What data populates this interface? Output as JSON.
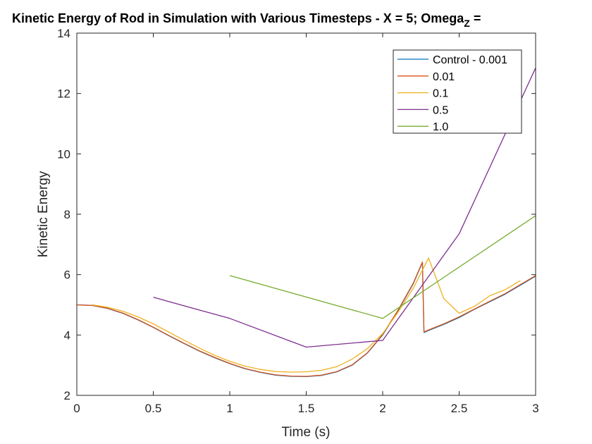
{
  "chart_data": {
    "type": "line",
    "title_main": "Kinetic Energy of Rod in Simulation with Various Timesteps - X = 5; Omega",
    "title_sub": "Z",
    "title_tail": " =",
    "xlabel": "Time (s)",
    "ylabel": "Kinetic Energy",
    "xlim": [
      0,
      3
    ],
    "ylim": [
      2,
      14
    ],
    "xticks": [
      0,
      0.5,
      1,
      1.5,
      2,
      2.5,
      3
    ],
    "xtick_labels": [
      "0",
      "0.5",
      "1",
      "1.5",
      "2",
      "2.5",
      "3"
    ],
    "yticks": [
      2,
      4,
      6,
      8,
      10,
      12,
      14
    ],
    "ytick_labels": [
      "2",
      "4",
      "6",
      "8",
      "10",
      "12",
      "14"
    ],
    "grid": false,
    "legend_position": "top-right",
    "series": [
      {
        "name": "Control - 0.001",
        "color": "#0072BD",
        "x": [
          0,
          0.1,
          0.2,
          0.3,
          0.4,
          0.5,
          0.6,
          0.7,
          0.8,
          0.9,
          1.0,
          1.1,
          1.2,
          1.3,
          1.4,
          1.5,
          1.6,
          1.7,
          1.8,
          1.9,
          2.0,
          2.1,
          2.2,
          2.26,
          2.27,
          2.3,
          2.4,
          2.5,
          2.6,
          2.7,
          2.8,
          2.9,
          3.0
        ],
        "y": [
          5.0,
          4.98,
          4.88,
          4.72,
          4.5,
          4.25,
          3.98,
          3.72,
          3.47,
          3.25,
          3.05,
          2.88,
          2.76,
          2.67,
          2.63,
          2.62,
          2.66,
          2.78,
          3.0,
          3.4,
          4.0,
          4.8,
          5.7,
          6.4,
          4.08,
          4.15,
          4.35,
          4.58,
          4.85,
          5.1,
          5.35,
          5.65,
          5.95
        ]
      },
      {
        "name": "0.01",
        "color": "#D95319",
        "x": [
          0,
          0.1,
          0.2,
          0.3,
          0.4,
          0.5,
          0.6,
          0.7,
          0.8,
          0.9,
          1.0,
          1.1,
          1.2,
          1.3,
          1.4,
          1.5,
          1.6,
          1.7,
          1.8,
          1.9,
          2.0,
          2.1,
          2.2,
          2.26,
          2.27,
          2.3,
          2.4,
          2.5,
          2.6,
          2.7,
          2.8,
          2.9,
          3.0
        ],
        "y": [
          5.0,
          4.98,
          4.89,
          4.73,
          4.51,
          4.26,
          3.99,
          3.73,
          3.48,
          3.26,
          3.06,
          2.89,
          2.77,
          2.68,
          2.64,
          2.63,
          2.67,
          2.79,
          3.01,
          3.41,
          4.02,
          4.82,
          5.72,
          6.42,
          4.1,
          4.17,
          4.37,
          4.6,
          4.86,
          5.12,
          5.37,
          5.67,
          5.97
        ]
      },
      {
        "name": "0.1",
        "color": "#EDB120",
        "x": [
          0.1,
          0.2,
          0.3,
          0.4,
          0.5,
          0.6,
          0.7,
          0.8,
          0.9,
          1.0,
          1.1,
          1.2,
          1.3,
          1.4,
          1.5,
          1.6,
          1.7,
          1.8,
          1.9,
          2.0,
          2.1,
          2.2,
          2.3,
          2.4,
          2.5,
          2.6,
          2.7,
          2.8,
          2.9
        ],
        "y": [
          5.0,
          4.92,
          4.79,
          4.6,
          4.37,
          4.1,
          3.83,
          3.57,
          3.33,
          3.13,
          2.97,
          2.86,
          2.79,
          2.77,
          2.78,
          2.83,
          2.95,
          3.2,
          3.55,
          4.05,
          4.75,
          5.55,
          6.55,
          5.2,
          4.72,
          4.95,
          5.3,
          5.5,
          5.8
        ]
      },
      {
        "name": "0.5",
        "color": "#7E2F8E",
        "x": [
          0.5,
          1.0,
          1.5,
          2.0,
          2.5,
          3.0
        ],
        "y": [
          5.25,
          4.55,
          3.6,
          3.82,
          7.35,
          12.85
        ]
      },
      {
        "name": "1.0",
        "color": "#77AC30",
        "x": [
          1.0,
          2.0,
          3.0
        ],
        "y": [
          5.97,
          4.55,
          7.95
        ]
      }
    ]
  }
}
